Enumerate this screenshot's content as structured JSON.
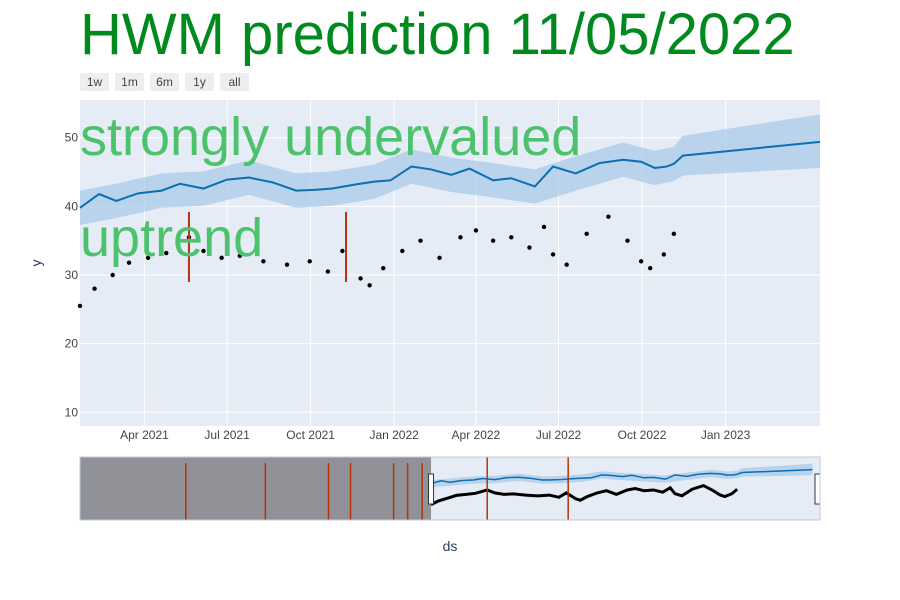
{
  "title": "HWM prediction 11/05/2022",
  "colors": {
    "title": "#008a1e",
    "annotation": "#4cc26c",
    "plot_bg": "#e5ecf6",
    "band": "#a9cbe8",
    "forecast": "#0b6fb1",
    "actual": "#000000",
    "changepoint": "#b5350a",
    "range_mask": "#8c8d91"
  },
  "range_selector": {
    "buttons": [
      {
        "label": "1w"
      },
      {
        "label": "1m"
      },
      {
        "label": "6m"
      },
      {
        "label": "1y"
      },
      {
        "label": "all"
      }
    ]
  },
  "annotations": {
    "valuation": "strongly undervalued",
    "trend": "uptrend"
  },
  "chart_data": {
    "type": "line",
    "title": "HWM prediction 11/05/2022",
    "xlabel": "ds",
    "ylabel": "y",
    "x_tick_labels": [
      "Apr 2021",
      "Jul 2021",
      "Oct 2021",
      "Jan 2022",
      "Apr 2022",
      "Jul 2022",
      "Oct 2022",
      "Jan 2023"
    ],
    "y_ticks": [
      10,
      20,
      30,
      40,
      50
    ],
    "xlim": [
      "2021-01-20",
      "2023-04-15"
    ],
    "ylim": [
      8,
      55.5
    ],
    "grid": true,
    "series": [
      {
        "kind": "forecast_line",
        "x": [
          "2021-01-20",
          "2021-02-10",
          "2021-03-01",
          "2021-03-25",
          "2021-04-20",
          "2021-05-10",
          "2021-06-05",
          "2021-07-01",
          "2021-07-25",
          "2021-08-20",
          "2021-09-15",
          "2021-10-05",
          "2021-10-25",
          "2021-11-20",
          "2021-12-10",
          "2021-12-28",
          "2022-01-20",
          "2022-02-10",
          "2022-03-05",
          "2022-03-25",
          "2022-04-20",
          "2022-05-10",
          "2022-06-05",
          "2022-06-25",
          "2022-07-20",
          "2022-08-15",
          "2022-09-10",
          "2022-09-30",
          "2022-10-15",
          "2022-10-28",
          "2022-11-05",
          "2022-11-15",
          "2023-04-15"
        ],
        "y": [
          39.8,
          41.8,
          40.8,
          41.9,
          42.3,
          43.3,
          42.6,
          43.9,
          44.2,
          43.5,
          42.3,
          42.4,
          42.6,
          43.2,
          43.6,
          43.8,
          45.8,
          45.4,
          44.6,
          45.5,
          43.8,
          44.1,
          42.9,
          45.8,
          44.8,
          46.3,
          46.8,
          46.5,
          45.6,
          45.8,
          46.2,
          47.4,
          49.4
        ]
      },
      {
        "kind": "uncertainty_upper",
        "x": [
          "2021-01-20",
          "2021-03-01",
          "2021-04-20",
          "2021-06-05",
          "2021-07-25",
          "2021-09-15",
          "2021-10-25",
          "2021-12-10",
          "2022-01-20",
          "2022-03-05",
          "2022-04-20",
          "2022-06-05",
          "2022-07-20",
          "2022-09-10",
          "2022-10-15",
          "2022-11-05",
          "2022-11-15",
          "2023-04-15"
        ],
        "y": [
          42.3,
          43.3,
          44.8,
          45.1,
          46.7,
          44.8,
          45.1,
          46.1,
          48.3,
          47.1,
          46.3,
          45.4,
          47.3,
          49.3,
          48.1,
          48.7,
          50.3,
          53.4
        ]
      },
      {
        "kind": "uncertainty_lower",
        "x": [
          "2021-01-20",
          "2021-03-01",
          "2021-04-20",
          "2021-06-05",
          "2021-07-25",
          "2021-09-15",
          "2021-10-25",
          "2021-12-10",
          "2022-01-20",
          "2022-03-05",
          "2022-04-20",
          "2022-06-05",
          "2022-07-20",
          "2022-09-10",
          "2022-10-15",
          "2022-11-05",
          "2022-11-15",
          "2023-04-15"
        ],
        "y": [
          37.3,
          38.3,
          39.8,
          40.1,
          41.7,
          39.8,
          40.1,
          41.1,
          43.3,
          42.1,
          41.3,
          40.4,
          42.3,
          44.3,
          43.1,
          43.7,
          44.5,
          45.6
        ]
      },
      {
        "kind": "actual_points",
        "x": [
          "2021-01-20",
          "2021-02-05",
          "2021-02-25",
          "2021-03-15",
          "2021-04-05",
          "2021-04-25",
          "2021-05-20",
          "2021-06-05",
          "2021-06-25",
          "2021-07-15",
          "2021-08-10",
          "2021-09-05",
          "2021-09-30",
          "2021-10-20",
          "2021-11-05",
          "2021-11-25",
          "2021-12-05",
          "2021-12-20",
          "2022-01-10",
          "2022-01-30",
          "2022-02-20",
          "2022-03-15",
          "2022-04-01",
          "2022-04-20",
          "2022-05-10",
          "2022-05-30",
          "2022-06-15",
          "2022-06-25",
          "2022-07-10",
          "2022-08-01",
          "2022-08-25",
          "2022-09-15",
          "2022-09-30",
          "2022-10-10",
          "2022-10-25",
          "2022-11-05"
        ],
        "y": [
          25.5,
          28.0,
          30.0,
          31.8,
          32.5,
          33.2,
          35.5,
          33.5,
          32.5,
          32.8,
          32.0,
          31.5,
          32.0,
          30.5,
          33.5,
          29.5,
          28.5,
          31.0,
          33.5,
          35.0,
          32.5,
          35.5,
          36.5,
          35.0,
          35.5,
          34.0,
          37.0,
          33.0,
          31.5,
          36.0,
          38.5,
          35.0,
          32.0,
          31.0,
          33.0,
          36.0
        ]
      }
    ],
    "changepoints_main": [
      "2021-05-20",
      "2021-11-09"
    ],
    "range_slider": {
      "xlim": [
        "2019-01-01",
        "2023-05-01"
      ],
      "selected_from": "2021-01-20",
      "changepoints": [
        "2019-08-15",
        "2020-02-01",
        "2020-06-15",
        "2020-08-01",
        "2020-11-01",
        "2020-12-01",
        "2021-01-01",
        "2021-05-20",
        "2021-11-09"
      ]
    }
  }
}
